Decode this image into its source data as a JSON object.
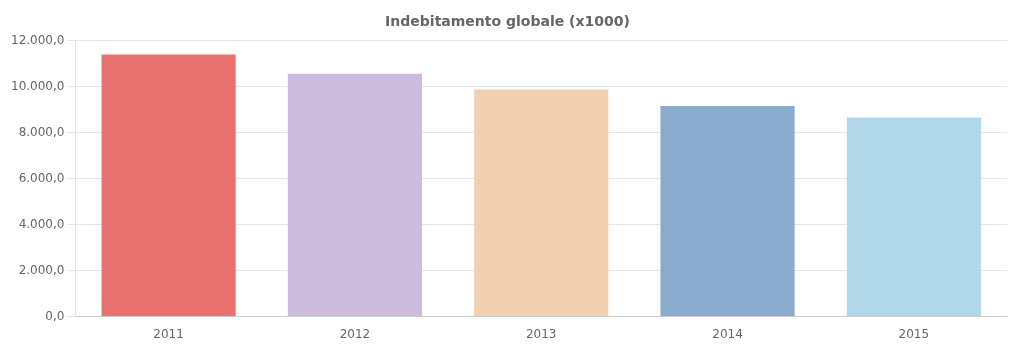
{
  "chart_data": {
    "type": "bar",
    "title": "Indebitamento globale (x1000)",
    "categories": [
      "2011",
      "2012",
      "2013",
      "2014",
      "2015"
    ],
    "values": [
      11401.183,
      10569.013,
      9882.342,
      9165.721,
      8667.0
    ],
    "colors": [
      "#e8706e",
      "#ccbbdd",
      "#f0d0b0",
      "#8aabce",
      "#b0d8e8"
    ],
    "ylim": [
      0,
      12000
    ],
    "yticks": [
      {
        "value": 0,
        "label": "0,0"
      },
      {
        "value": 2000,
        "label": "2.000,0"
      },
      {
        "value": 4000,
        "label": "4.000,0"
      },
      {
        "value": 6000,
        "label": "6.000,0"
      },
      {
        "value": 8000,
        "label": "8.000,0"
      },
      {
        "value": 10000,
        "label": "10.000,0"
      },
      {
        "value": 12000,
        "label": "12.000,0"
      }
    ],
    "grid": true
  }
}
